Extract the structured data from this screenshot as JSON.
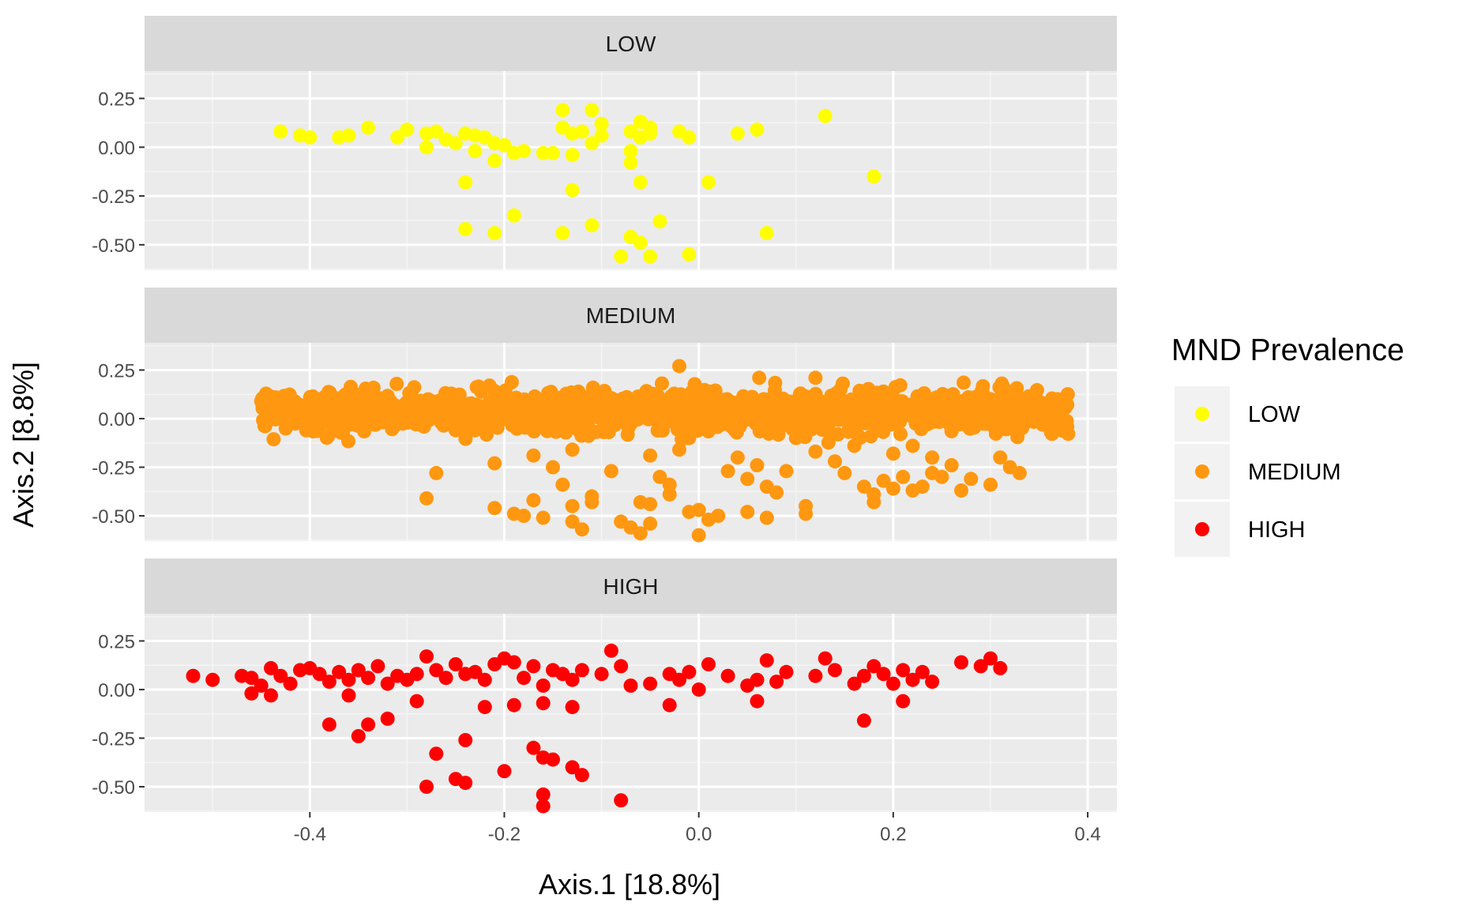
{
  "chart_data": {
    "type": "scatter",
    "facet_by": "MND Prevalence",
    "xlabel": "Axis.1   [18.8%]",
    "ylabel": "Axis.2   [8.8%]",
    "xlim": [
      -0.57,
      0.43
    ],
    "ylim": [
      -0.63,
      0.39
    ],
    "x_ticks": [
      -0.4,
      -0.2,
      0.0,
      0.2,
      0.4
    ],
    "x_tick_labels": [
      "-0.4",
      "-0.2",
      "0.0",
      "0.2",
      "0.4"
    ],
    "y_ticks": [
      0.25,
      0.0,
      -0.25,
      -0.5
    ],
    "y_tick_labels": [
      "0.25",
      "0.00",
      "-0.25",
      "-0.50"
    ],
    "grid": true,
    "legend": {
      "title": "MND Prevalence",
      "position": "right",
      "entries": [
        {
          "label": "LOW",
          "color": "#FFFF00"
        },
        {
          "label": "MEDIUM",
          "color": "#FF9810"
        },
        {
          "label": "HIGH",
          "color": "#FF0000"
        }
      ]
    },
    "panels": [
      {
        "name": "LOW",
        "color": "#FFFF00",
        "points": [
          [
            -0.43,
            0.08
          ],
          [
            -0.41,
            0.06
          ],
          [
            -0.4,
            0.05
          ],
          [
            -0.37,
            0.05
          ],
          [
            -0.36,
            0.06
          ],
          [
            -0.34,
            0.1
          ],
          [
            -0.31,
            0.05
          ],
          [
            -0.3,
            0.09
          ],
          [
            -0.28,
            0.07
          ],
          [
            -0.28,
            0.0
          ],
          [
            -0.27,
            0.08
          ],
          [
            -0.26,
            0.04
          ],
          [
            -0.25,
            0.02
          ],
          [
            -0.24,
            0.07
          ],
          [
            -0.23,
            0.06
          ],
          [
            -0.22,
            0.05
          ],
          [
            -0.21,
            0.02
          ],
          [
            -0.2,
            0.01
          ],
          [
            -0.23,
            -0.02
          ],
          [
            -0.21,
            -0.07
          ],
          [
            -0.19,
            -0.03
          ],
          [
            -0.18,
            -0.02
          ],
          [
            -0.16,
            -0.03
          ],
          [
            -0.15,
            -0.03
          ],
          [
            -0.14,
            0.1
          ],
          [
            -0.13,
            0.07
          ],
          [
            -0.14,
            0.19
          ],
          [
            -0.11,
            0.19
          ],
          [
            -0.12,
            0.08
          ],
          [
            -0.1,
            0.12
          ],
          [
            -0.1,
            0.06
          ],
          [
            -0.11,
            0.02
          ],
          [
            -0.13,
            -0.04
          ],
          [
            -0.07,
            0.08
          ],
          [
            -0.06,
            0.13
          ],
          [
            -0.05,
            0.1
          ],
          [
            -0.06,
            0.05
          ],
          [
            -0.05,
            0.07
          ],
          [
            -0.07,
            -0.02
          ],
          [
            -0.07,
            -0.08
          ],
          [
            -0.06,
            -0.18
          ],
          [
            -0.13,
            -0.22
          ],
          [
            -0.24,
            -0.18
          ],
          [
            -0.19,
            -0.35
          ],
          [
            -0.24,
            -0.42
          ],
          [
            -0.21,
            -0.44
          ],
          [
            -0.14,
            -0.44
          ],
          [
            -0.11,
            -0.4
          ],
          [
            -0.07,
            -0.46
          ],
          [
            -0.06,
            -0.49
          ],
          [
            -0.04,
            -0.38
          ],
          [
            -0.08,
            -0.56
          ],
          [
            -0.05,
            -0.56
          ],
          [
            -0.01,
            -0.55
          ],
          [
            -0.02,
            0.08
          ],
          [
            -0.01,
            0.05
          ],
          [
            0.01,
            -0.18
          ],
          [
            0.04,
            0.07
          ],
          [
            0.06,
            0.09
          ],
          [
            0.07,
            -0.44
          ],
          [
            0.13,
            0.16
          ],
          [
            0.18,
            -0.15
          ]
        ]
      },
      {
        "name": "MEDIUM",
        "color": "#FF9810",
        "seed": 12345,
        "band": {
          "count": 1400,
          "x_min": -0.45,
          "x_max": 0.38,
          "y_mean": 0.035,
          "y_spread": 0.055
        },
        "points": [
          [
            -0.45,
            0.09
          ],
          [
            -0.44,
            0.08
          ],
          [
            -0.42,
            0.02
          ],
          [
            -0.41,
            0.07
          ],
          [
            -0.4,
            0.09
          ],
          [
            -0.38,
            0.09
          ],
          [
            -0.37,
            0.04
          ],
          [
            -0.35,
            0.08
          ],
          [
            -0.27,
            -0.28
          ],
          [
            -0.28,
            -0.41
          ],
          [
            -0.21,
            -0.23
          ],
          [
            -0.21,
            -0.46
          ],
          [
            -0.19,
            -0.49
          ],
          [
            -0.18,
            -0.5
          ],
          [
            -0.17,
            -0.19
          ],
          [
            -0.17,
            -0.42
          ],
          [
            -0.16,
            -0.51
          ],
          [
            -0.15,
            -0.25
          ],
          [
            -0.14,
            -0.34
          ],
          [
            -0.13,
            -0.16
          ],
          [
            -0.13,
            -0.45
          ],
          [
            -0.13,
            -0.53
          ],
          [
            -0.12,
            -0.57
          ],
          [
            -0.11,
            -0.43
          ],
          [
            -0.11,
            -0.4
          ],
          [
            -0.09,
            -0.27
          ],
          [
            -0.08,
            -0.53
          ],
          [
            -0.07,
            -0.56
          ],
          [
            -0.06,
            -0.43
          ],
          [
            -0.06,
            -0.59
          ],
          [
            -0.05,
            -0.44
          ],
          [
            -0.05,
            -0.54
          ],
          [
            -0.05,
            -0.19
          ],
          [
            -0.04,
            -0.3
          ],
          [
            -0.03,
            -0.39
          ],
          [
            -0.03,
            -0.34
          ],
          [
            -0.02,
            -0.16
          ],
          [
            -0.01,
            -0.48
          ],
          [
            0.0,
            -0.6
          ],
          [
            0.0,
            -0.47
          ],
          [
            0.01,
            -0.52
          ],
          [
            0.02,
            -0.5
          ],
          [
            0.03,
            -0.27
          ],
          [
            0.04,
            -0.2
          ],
          [
            0.05,
            -0.31
          ],
          [
            0.05,
            -0.48
          ],
          [
            0.06,
            -0.24
          ],
          [
            0.07,
            -0.51
          ],
          [
            0.07,
            -0.35
          ],
          [
            0.08,
            -0.38
          ],
          [
            0.09,
            -0.27
          ],
          [
            0.11,
            -0.45
          ],
          [
            0.11,
            -0.49
          ],
          [
            0.12,
            -0.17
          ],
          [
            0.14,
            -0.22
          ],
          [
            0.15,
            -0.28
          ],
          [
            0.17,
            -0.35
          ],
          [
            0.18,
            -0.39
          ],
          [
            0.18,
            -0.43
          ],
          [
            0.19,
            -0.32
          ],
          [
            0.2,
            -0.36
          ],
          [
            0.21,
            -0.3
          ],
          [
            0.22,
            -0.37
          ],
          [
            0.23,
            -0.35
          ],
          [
            0.24,
            -0.28
          ],
          [
            0.25,
            -0.3
          ],
          [
            0.26,
            -0.24
          ],
          [
            0.27,
            -0.37
          ],
          [
            0.28,
            -0.31
          ],
          [
            0.3,
            -0.34
          ],
          [
            0.31,
            -0.2
          ],
          [
            0.32,
            -0.25
          ],
          [
            0.33,
            -0.28
          ],
          [
            0.2,
            -0.18
          ],
          [
            0.22,
            -0.14
          ],
          [
            0.24,
            -0.2
          ],
          [
            0.16,
            -0.14
          ],
          [
            0.1,
            -0.1
          ],
          [
            -0.01,
            -0.1
          ],
          [
            -0.25,
            -0.06
          ],
          [
            -0.23,
            -0.06
          ],
          [
            -0.02,
            0.27
          ],
          [
            0.12,
            0.21
          ]
        ]
      },
      {
        "name": "HIGH",
        "color": "#FF0000",
        "points": [
          [
            -0.52,
            0.07
          ],
          [
            -0.5,
            0.05
          ],
          [
            -0.47,
            0.07
          ],
          [
            -0.46,
            0.06
          ],
          [
            -0.45,
            0.02
          ],
          [
            -0.44,
            0.11
          ],
          [
            -0.43,
            0.07
          ],
          [
            -0.42,
            0.03
          ],
          [
            -0.41,
            0.1
          ],
          [
            -0.4,
            0.11
          ],
          [
            -0.39,
            0.08
          ],
          [
            -0.38,
            0.04
          ],
          [
            -0.37,
            0.09
          ],
          [
            -0.36,
            0.05
          ],
          [
            -0.35,
            0.1
          ],
          [
            -0.34,
            0.06
          ],
          [
            -0.33,
            0.12
          ],
          [
            -0.32,
            0.03
          ],
          [
            -0.31,
            0.07
          ],
          [
            -0.3,
            0.05
          ],
          [
            -0.29,
            0.08
          ],
          [
            -0.28,
            0.17
          ],
          [
            -0.27,
            0.1
          ],
          [
            -0.26,
            0.06
          ],
          [
            -0.25,
            0.13
          ],
          [
            -0.24,
            0.08
          ],
          [
            -0.23,
            0.09
          ],
          [
            -0.22,
            0.05
          ],
          [
            -0.21,
            0.13
          ],
          [
            -0.2,
            0.16
          ],
          [
            -0.19,
            0.14
          ],
          [
            -0.18,
            0.06
          ],
          [
            -0.17,
            0.12
          ],
          [
            -0.16,
            0.02
          ],
          [
            -0.15,
            0.1
          ],
          [
            -0.14,
            0.08
          ],
          [
            -0.13,
            0.05
          ],
          [
            -0.12,
            0.1
          ],
          [
            -0.1,
            0.08
          ],
          [
            -0.09,
            0.2
          ],
          [
            -0.08,
            0.12
          ],
          [
            -0.07,
            0.02
          ],
          [
            -0.05,
            0.03
          ],
          [
            -0.03,
            0.08
          ],
          [
            -0.02,
            0.05
          ],
          [
            -0.01,
            0.09
          ],
          [
            0.0,
            0.0
          ],
          [
            0.01,
            0.13
          ],
          [
            0.03,
            0.07
          ],
          [
            0.05,
            0.02
          ],
          [
            0.06,
            0.05
          ],
          [
            0.07,
            0.15
          ],
          [
            0.08,
            0.04
          ],
          [
            0.09,
            0.09
          ],
          [
            0.12,
            0.07
          ],
          [
            0.13,
            0.16
          ],
          [
            0.14,
            0.1
          ],
          [
            0.16,
            0.03
          ],
          [
            0.17,
            0.07
          ],
          [
            0.18,
            0.12
          ],
          [
            0.19,
            0.08
          ],
          [
            0.2,
            0.03
          ],
          [
            0.21,
            0.1
          ],
          [
            0.22,
            0.05
          ],
          [
            0.23,
            0.09
          ],
          [
            0.24,
            0.04
          ],
          [
            0.27,
            0.14
          ],
          [
            0.29,
            0.12
          ],
          [
            0.3,
            0.16
          ],
          [
            0.31,
            0.11
          ],
          [
            -0.46,
            -0.02
          ],
          [
            -0.44,
            -0.03
          ],
          [
            -0.38,
            -0.18
          ],
          [
            -0.36,
            -0.03
          ],
          [
            -0.35,
            -0.24
          ],
          [
            -0.34,
            -0.18
          ],
          [
            -0.32,
            -0.15
          ],
          [
            -0.29,
            -0.06
          ],
          [
            -0.27,
            -0.33
          ],
          [
            -0.24,
            -0.26
          ],
          [
            -0.22,
            -0.09
          ],
          [
            -0.2,
            -0.42
          ],
          [
            -0.19,
            -0.08
          ],
          [
            -0.16,
            -0.35
          ],
          [
            -0.16,
            -0.07
          ],
          [
            -0.15,
            -0.36
          ],
          [
            -0.13,
            -0.09
          ],
          [
            -0.13,
            -0.4
          ],
          [
            -0.17,
            -0.3
          ],
          [
            -0.12,
            -0.44
          ],
          [
            -0.28,
            -0.5
          ],
          [
            -0.25,
            -0.46
          ],
          [
            -0.24,
            -0.48
          ],
          [
            -0.16,
            -0.54
          ],
          [
            -0.16,
            -0.6
          ],
          [
            -0.08,
            -0.57
          ],
          [
            -0.03,
            -0.08
          ],
          [
            0.06,
            -0.06
          ],
          [
            0.17,
            -0.16
          ],
          [
            0.21,
            -0.06
          ]
        ]
      }
    ]
  }
}
